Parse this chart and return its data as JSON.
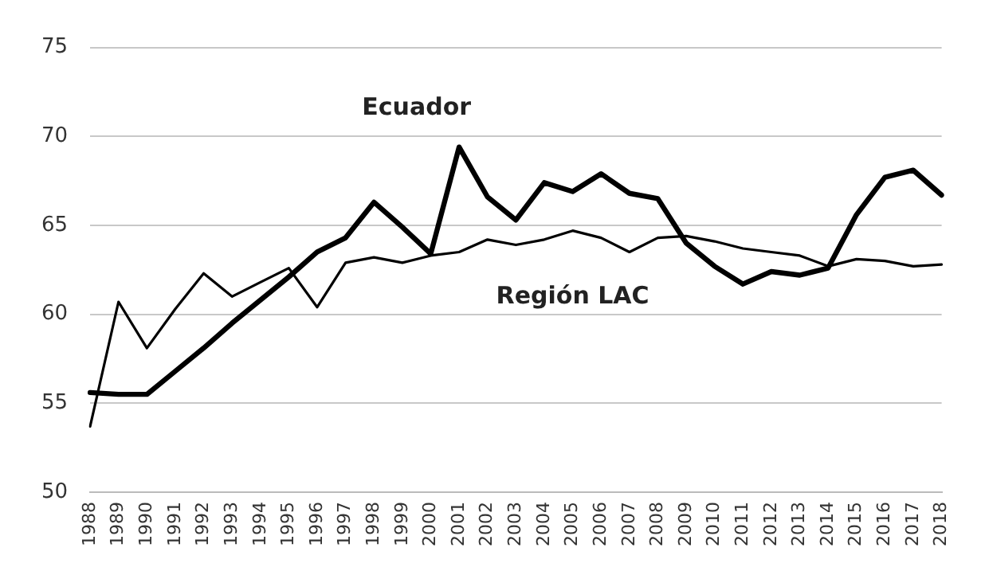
{
  "chart_data": {
    "type": "line",
    "categories": [
      "1988",
      "1989",
      "1990",
      "1991",
      "1992",
      "1993",
      "1994",
      "1995",
      "1996",
      "1997",
      "1998",
      "1999",
      "2000",
      "2001",
      "2002",
      "2003",
      "2004",
      "2005",
      "2006",
      "2007",
      "2008",
      "2009",
      "2010",
      "2011",
      "2012",
      "2013",
      "2014",
      "2015",
      "2016",
      "2017",
      "2018"
    ],
    "series": [
      {
        "name": "Ecuador",
        "color": "#000000",
        "values": [
          55.6,
          55.5,
          55.5,
          56.8,
          58.1,
          59.5,
          60.8,
          62.1,
          63.5,
          64.3,
          66.3,
          64.9,
          63.4,
          69.4,
          66.6,
          65.3,
          67.4,
          66.9,
          67.9,
          66.8,
          66.5,
          64.0,
          62.7,
          61.7,
          62.4,
          62.2,
          62.6,
          65.6,
          67.7,
          68.1,
          66.7
        ]
      },
      {
        "name": "Región LAC",
        "color": "#000000",
        "values": [
          53.7,
          60.7,
          58.1,
          60.3,
          62.3,
          61.0,
          61.8,
          62.6,
          60.4,
          62.9,
          63.2,
          62.9,
          63.3,
          63.5,
          64.2,
          63.9,
          64.2,
          64.7,
          64.3,
          63.5,
          64.3,
          64.4,
          64.1,
          63.7,
          63.5,
          63.3,
          62.7,
          63.1,
          63.0,
          62.7,
          62.8
        ]
      }
    ],
    "ylim": [
      50,
      75
    ],
    "yticks": [
      50,
      55,
      60,
      65,
      70,
      75
    ],
    "grid": "y",
    "legend": false,
    "marker": "none",
    "line_style": "solid"
  }
}
